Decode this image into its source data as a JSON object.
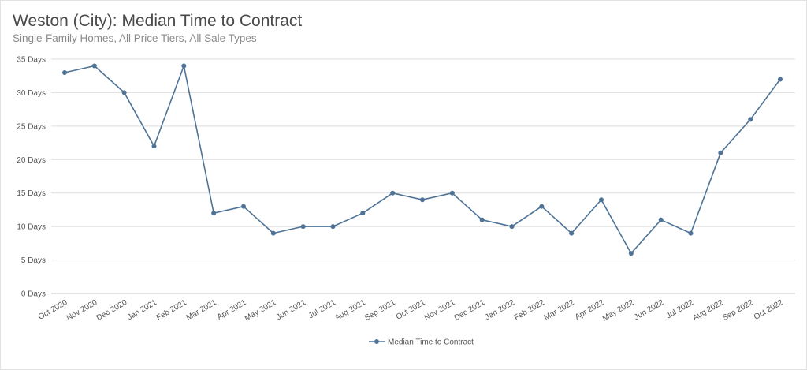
{
  "header": {
    "title": "Weston (City): Median Time to Contract",
    "subtitle": "Single-Family Homes, All Price Tiers, All Sale Types"
  },
  "colors": {
    "series": "#4e7396",
    "grid": "#dedede",
    "text": "#555555"
  },
  "chart_data": {
    "type": "line",
    "title": "Weston (City): Median Time to Contract",
    "subtitle": "Single-Family Homes, All Price Tiers, All Sale Types",
    "categories": [
      "Oct 2020",
      "Nov 2020",
      "Dec 2020",
      "Jan 2021",
      "Feb 2021",
      "Mar 2021",
      "Apr 2021",
      "May 2021",
      "Jun 2021",
      "Jul 2021",
      "Aug 2021",
      "Sep 2021",
      "Oct 2021",
      "Nov 2021",
      "Dec 2021",
      "Jan 2022",
      "Feb 2022",
      "Mar 2022",
      "Apr 2022",
      "May 2022",
      "Jun 2022",
      "Jul 2022",
      "Aug 2022",
      "Sep 2022",
      "Oct 2022"
    ],
    "series": [
      {
        "name": "Median Time to Contract",
        "values": [
          33,
          34,
          30,
          22,
          34,
          12,
          13,
          9,
          10,
          10,
          12,
          15,
          14,
          15,
          11,
          10,
          13,
          9,
          14,
          6,
          11,
          9,
          21,
          26,
          32
        ]
      }
    ],
    "yticks": [
      "0 Days",
      "5 Days",
      "10 Days",
      "15 Days",
      "20 Days",
      "25 Days",
      "30 Days",
      "35 Days"
    ],
    "ylim": [
      0,
      35
    ],
    "grid": true,
    "legend": "bottom-center"
  }
}
